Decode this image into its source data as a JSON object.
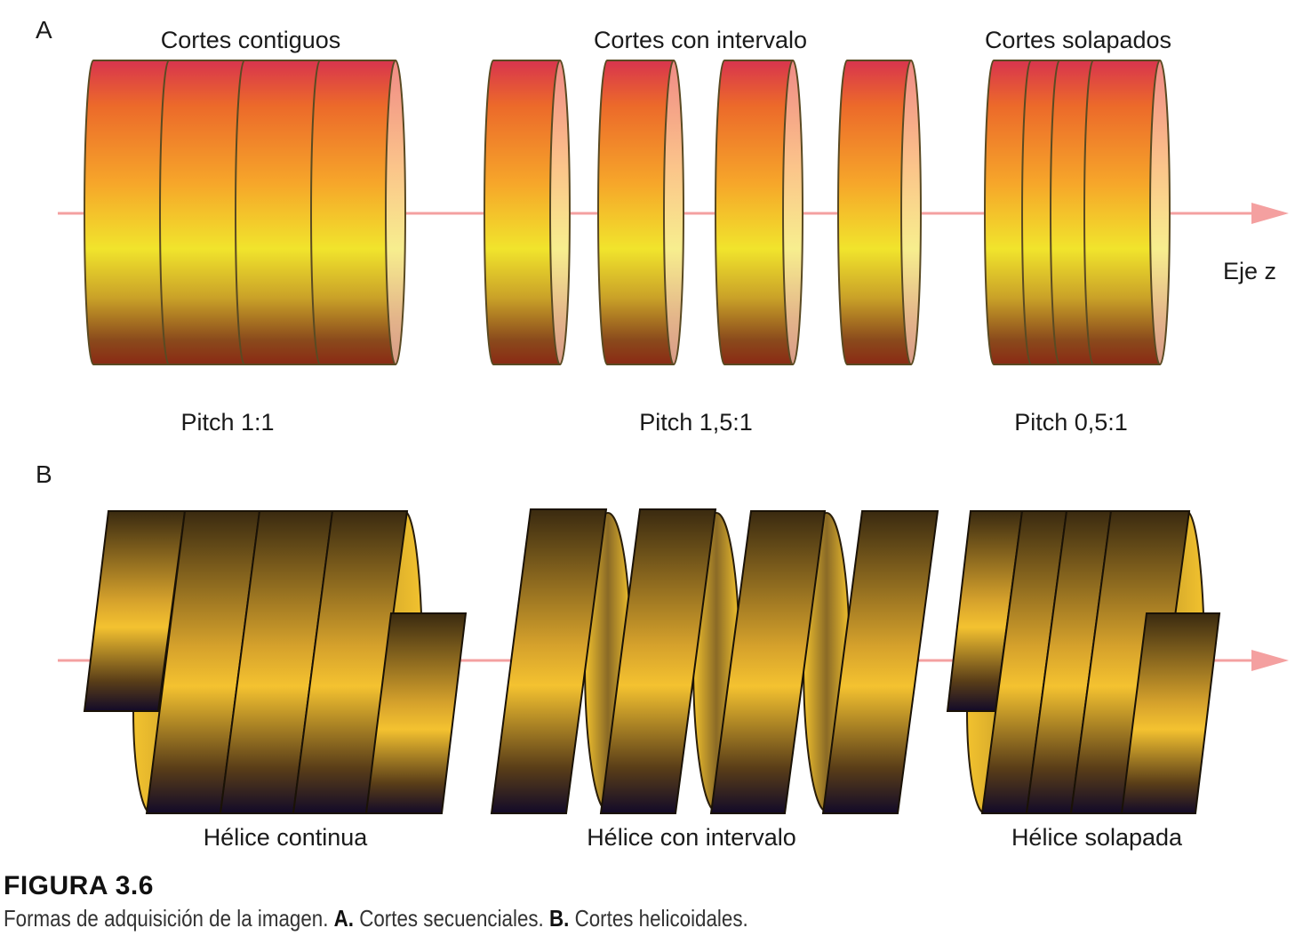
{
  "panel_a": {
    "letter": "A",
    "titles": [
      "Cortes contiguos",
      "Cortes con intervalo",
      "Cortes solapados"
    ],
    "pitches": [
      "Pitch 1:1",
      "Pitch 1,5:1",
      "Pitch 0,5:1"
    ],
    "axis_label": "Eje z"
  },
  "panel_b": {
    "letter": "B",
    "labels": [
      "Hélice continua",
      "Hélice con intervalo",
      "Hélice solapada"
    ]
  },
  "figure": {
    "title": "FIGURA 3.6",
    "caption_text": "Formas de adquisición de la imagen.",
    "part_a": "A.",
    "part_a_text": "Cortes secuenciales.",
    "part_b": "B.",
    "part_b_text": "Cortes helicoidales."
  },
  "colors": {
    "axis": "#f4a0a0",
    "slice_top": "#d8344e",
    "slice_mid": "#f1e42c",
    "slice_bottom": "#8a2a14",
    "helix_dark": "#3a2a10",
    "helix_gold": "#f4c230",
    "helix_bottom": "#120a28"
  }
}
